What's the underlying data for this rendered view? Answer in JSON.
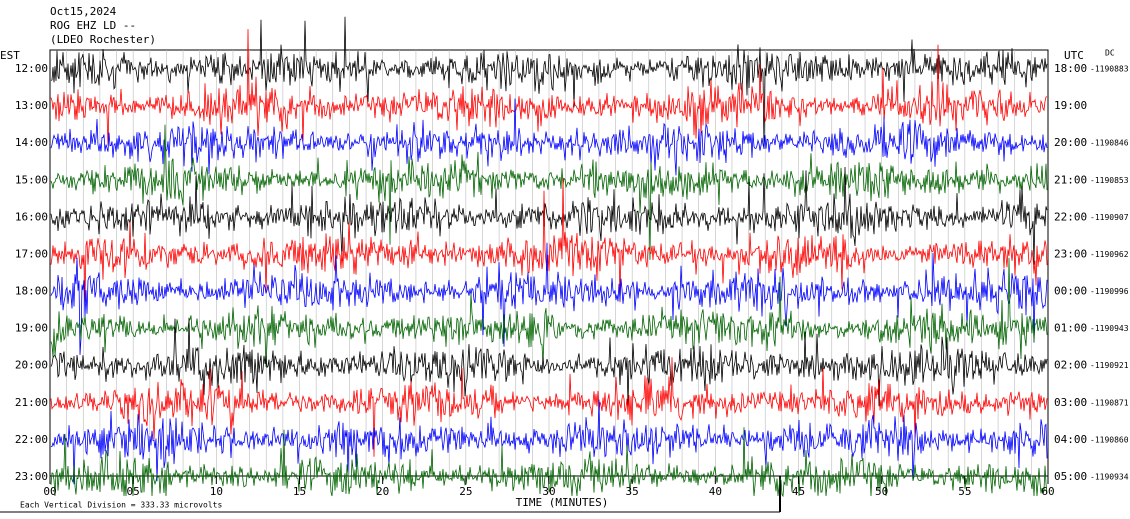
{
  "chart_data": {
    "type": "helicorder",
    "title_lines": [
      "Oct15,2024",
      "ROG EHZ LD --",
      "(LDEO Rochester)"
    ],
    "left_axis_label": "EST",
    "right_axis_label": "UTC",
    "right_corner_note": "DC",
    "xlabel": "TIME (MINUTES)",
    "footnote": "Each Vertical Division =  333.33 microvolts",
    "xlim": [
      0,
      60
    ],
    "xticks": [
      {
        "value": 0,
        "label": "00"
      },
      {
        "value": 5,
        "label": "05"
      },
      10,
      15,
      20,
      25,
      30,
      35,
      40,
      45,
      50,
      55,
      60
    ],
    "rows": [
      {
        "est": "12:00",
        "utc": "18:00",
        "offset": -1190883,
        "color": "#000000"
      },
      {
        "est": "13:00",
        "utc": "19:00",
        "offset": null,
        "color": "#ff0000"
      },
      {
        "est": "14:00",
        "utc": "20:00",
        "offset": -1190846,
        "color": "#0000ff"
      },
      {
        "est": "15:00",
        "utc": "21:00",
        "offset": -1190853,
        "color": "#006400"
      },
      {
        "est": "16:00",
        "utc": "22:00",
        "offset": -1190907,
        "color": "#000000"
      },
      {
        "est": "17:00",
        "utc": "23:00",
        "offset": -1190962,
        "color": "#ff0000"
      },
      {
        "est": "18:00",
        "utc": "00:00",
        "offset": -1190996,
        "color": "#0000ff"
      },
      {
        "est": "19:00",
        "utc": "01:00",
        "offset": -1190943,
        "color": "#006400"
      },
      {
        "est": "20:00",
        "utc": "02:00",
        "offset": -1190921,
        "color": "#000000"
      },
      {
        "est": "21:00",
        "utc": "03:00",
        "offset": -1190871,
        "color": "#ff0000"
      },
      {
        "est": "22:00",
        "utc": "04:00",
        "offset": -1190860,
        "color": "#0000ff"
      },
      {
        "est": "23:00",
        "utc": "05:00",
        "offset": -1190934,
        "color": "#006400"
      }
    ]
  }
}
